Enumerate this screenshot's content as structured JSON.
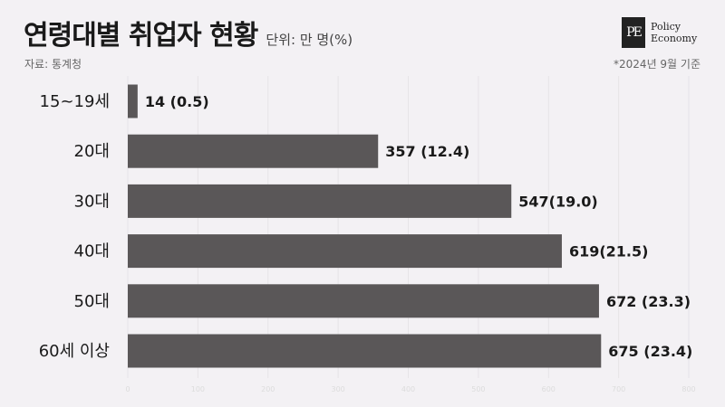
{
  "header": {
    "title": "연령대별 취업자 현황",
    "unit": "단위: 만 명(%)",
    "source": "자료: 통계청",
    "note": "*2024년 9월 기준"
  },
  "logo": {
    "mark": "PE",
    "line1": "Policy",
    "line2": "Economy"
  },
  "colors": {
    "bar": "#5a5758",
    "grid": "#e6e4e7",
    "background": "#f3f1f4"
  },
  "chart_data": {
    "type": "bar",
    "orientation": "horizontal",
    "categories": [
      "15~19세",
      "20대",
      "30대",
      "40대",
      "50대",
      "60세 이상"
    ],
    "values": [
      14,
      357,
      547,
      619,
      672,
      675
    ],
    "shares": [
      0.5,
      12.4,
      19.0,
      21.5,
      23.3,
      23.4
    ],
    "value_labels": [
      "14 (0.5)",
      "357 (12.4)",
      "547(19.0)",
      "619(21.5)",
      "672 (23.3)",
      "675 (23.4)"
    ],
    "x_ticks": [
      0,
      100,
      200,
      300,
      400,
      500,
      600,
      700,
      800
    ],
    "xlim": [
      0,
      800
    ],
    "grid": true
  }
}
